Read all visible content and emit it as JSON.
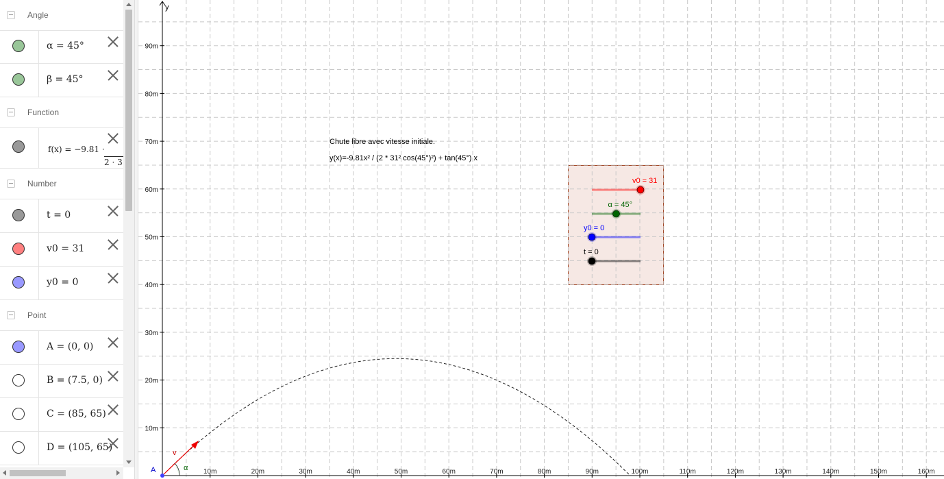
{
  "algebra": {
    "groups": {
      "angle": "Angle",
      "function": "Function",
      "number": "Number",
      "point": "Point"
    },
    "items": {
      "alpha": {
        "expr": "α = 45°",
        "color": "#99c699"
      },
      "beta": {
        "expr": "β = 45°",
        "color": "#99c699"
      },
      "f": {
        "expr": "f(x)  =  −9.81 ·",
        "denominator": "2 · 3",
        "color": "#999999"
      },
      "t": {
        "expr": "t = 0",
        "color": "#999999"
      },
      "v0": {
        "expr": "v0 = 31",
        "color": "#ff8080"
      },
      "y0": {
        "expr": "y0 = 0",
        "color": "#9999ff"
      },
      "A": {
        "expr": "A = (0, 0)",
        "color": "#9999ff"
      },
      "B": {
        "expr": "B = (7.5, 0)",
        "color": "#ffffff"
      },
      "C": {
        "expr": "C = (85, 65)",
        "color": "#ffffff"
      },
      "D": {
        "expr": "D = (105, 65)",
        "color": "#ffffff"
      }
    }
  },
  "graph": {
    "y_axis_label": "y",
    "x_tick_labels": [
      "10m",
      "20m",
      "30m",
      "40m",
      "50m",
      "60m",
      "70m",
      "80m",
      "90m",
      "100m",
      "110m",
      "120m",
      "130m",
      "140m",
      "150m",
      "160m"
    ],
    "y_tick_labels": [
      "10m",
      "20m",
      "30m",
      "40m",
      "50m",
      "60m",
      "70m",
      "80m",
      "90m"
    ],
    "x_range": [
      0,
      160
    ],
    "y_range": [
      0,
      95
    ],
    "grid": true,
    "text_title": "Chute libre avec vitesse initiale.",
    "text_equation": "y(x)=-9.81x² / (2 * 31² cos(45°)²) + tan(45°) x",
    "point_A_label": "A",
    "vector_label": "v",
    "angle_label": "α",
    "sliders": {
      "v0": {
        "label": "v0 = 31",
        "color": "#ff0000",
        "fraction": 1.0
      },
      "alpha": {
        "label": "α = 45°",
        "color": "#006400",
        "fraction": 0.5
      },
      "y0": {
        "label": "y0 = 0",
        "color": "#0000ff",
        "fraction": 0.0
      },
      "t": {
        "label": "t = 0",
        "color": "#000000",
        "fraction": 0.0
      }
    },
    "trajectory": {
      "g": 9.81,
      "v0": 31,
      "angle_deg": 45,
      "y0": 0
    }
  }
}
